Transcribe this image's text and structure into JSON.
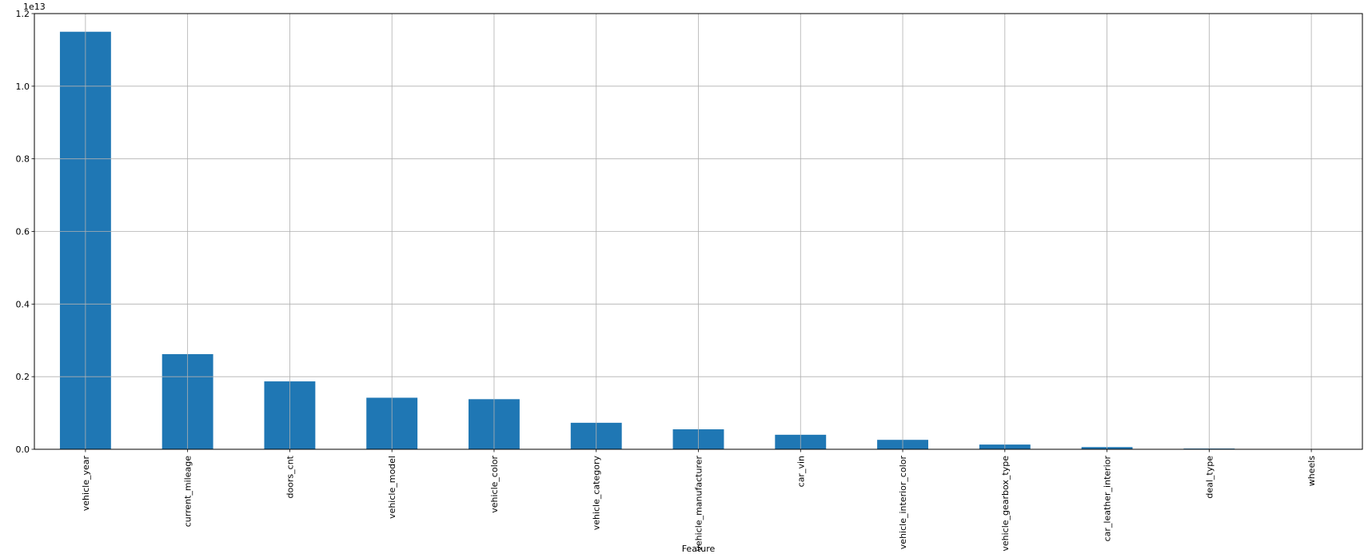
{
  "chart_data": {
    "type": "bar",
    "title": "",
    "xlabel": "Feature",
    "ylabel": "",
    "y_offset_label": "1e13",
    "y_scale_factor": 10000000000000.0,
    "ylim": [
      0,
      12000000000000.0
    ],
    "yticks": [
      0,
      2000000000000.0,
      4000000000000.0,
      6000000000000.0,
      8000000000000.0,
      10000000000000.0,
      12000000000000.0
    ],
    "ytick_labels": [
      "0.0",
      "0.2",
      "0.4",
      "0.6",
      "0.8",
      "1.0",
      "1.2"
    ],
    "grid": true,
    "bar_color": "#1f77b4",
    "categories": [
      "vehicle_year",
      "current_mileage",
      "doors_cnt",
      "vehicle_model",
      "vehicle_color",
      "vehicle_category",
      "vehicle_manufacturer",
      "car_vin",
      "vehicle_interior_color",
      "vehicle_gearbox_type",
      "car_leather_interior",
      "deal_type",
      "wheels"
    ],
    "values": [
      11500000000000.0,
      2620000000000.0,
      1870000000000.0,
      1420000000000.0,
      1380000000000.0,
      730000000000.0,
      550000000000.0,
      400000000000.0,
      260000000000.0,
      130000000000.0,
      60000000000.0,
      20000000000.0,
      10000000000.0
    ]
  }
}
